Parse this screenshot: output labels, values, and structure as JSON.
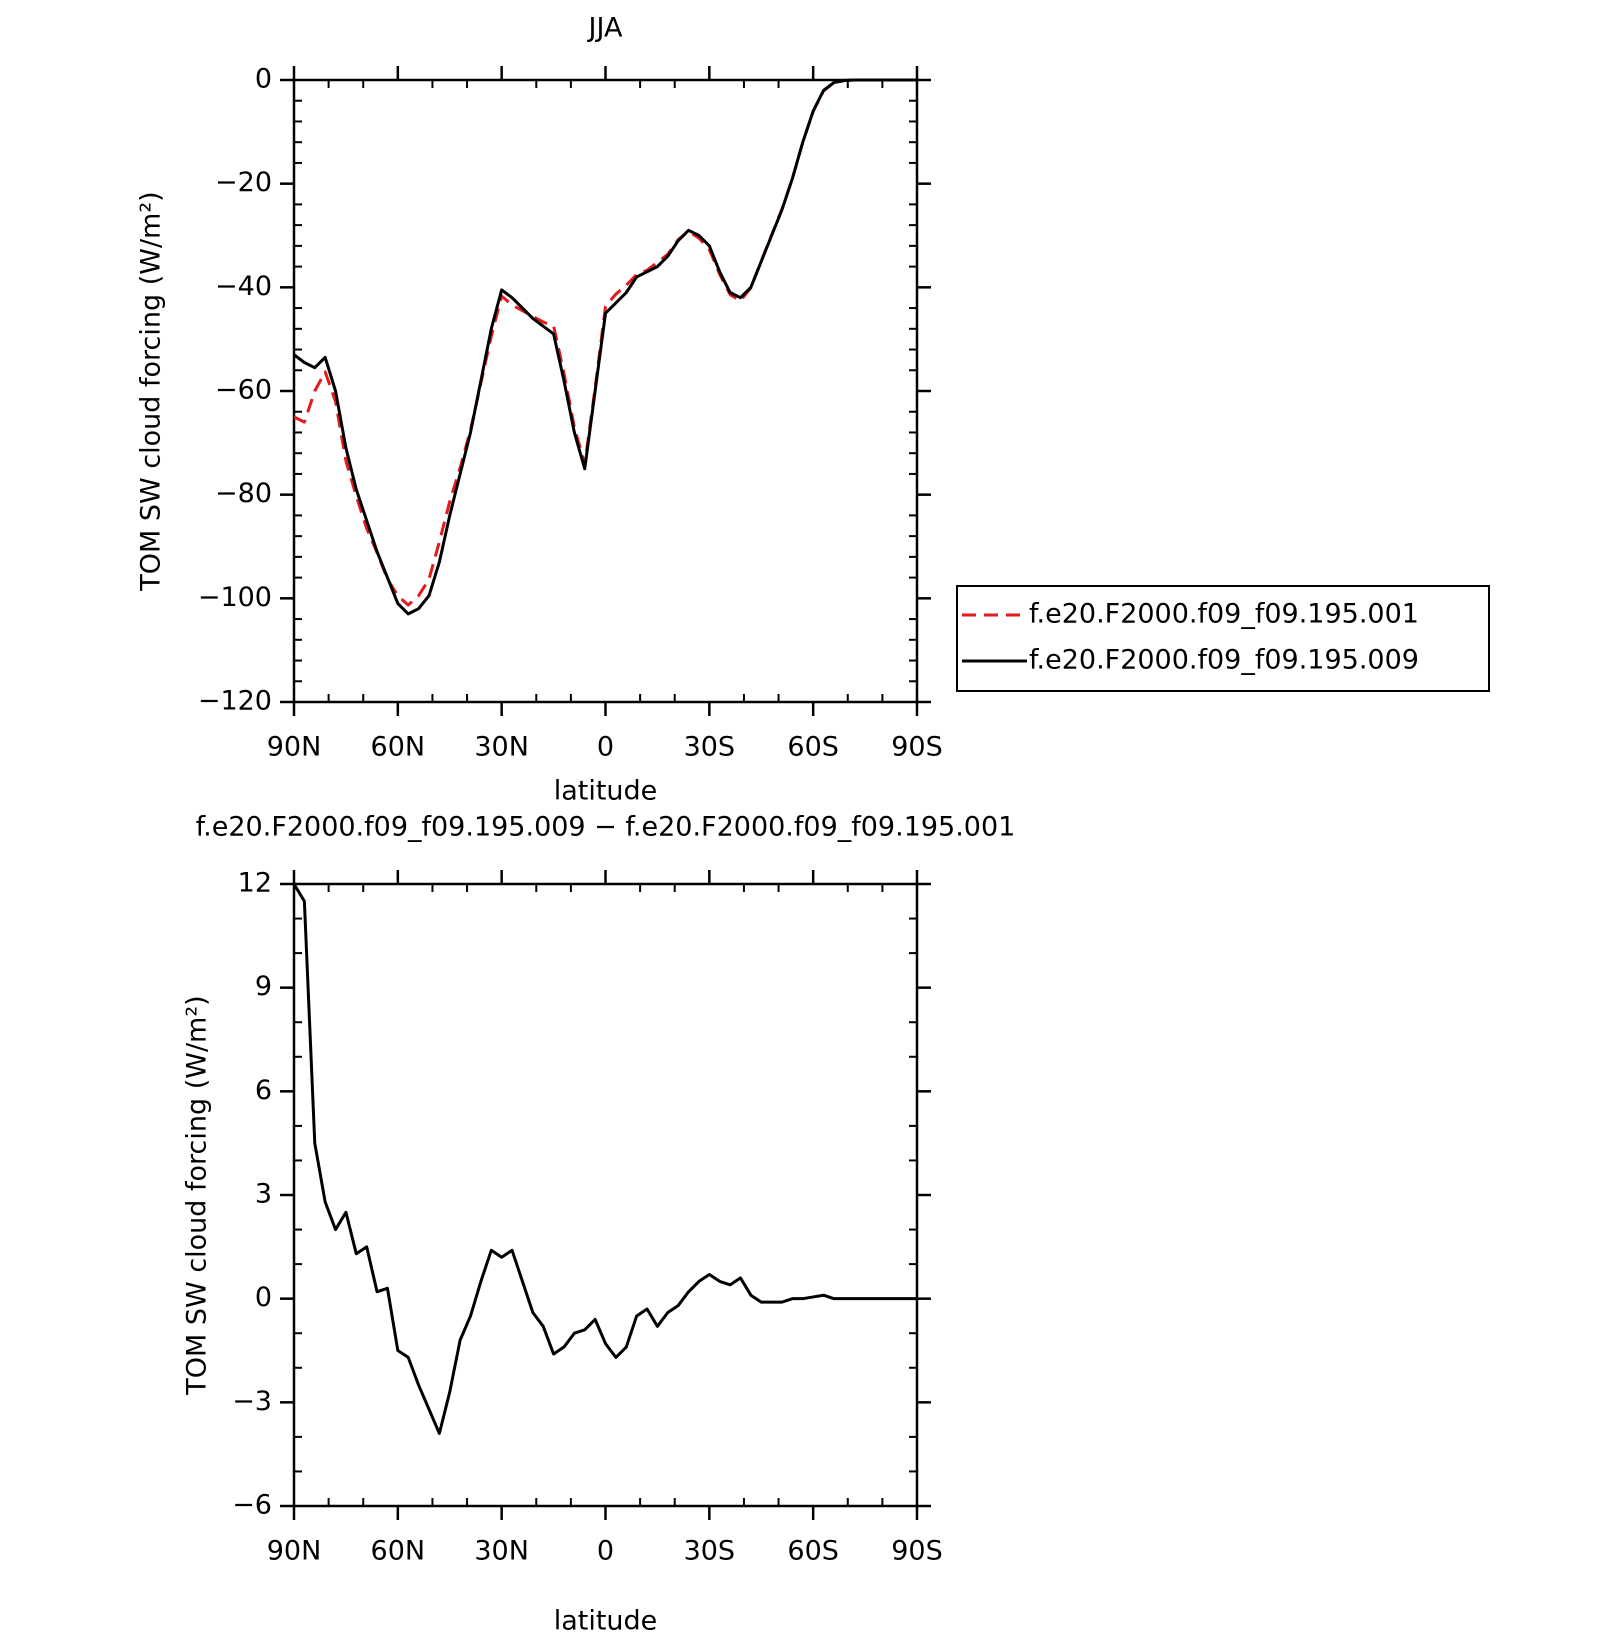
{
  "chart_data": [
    {
      "type": "line",
      "title": "JJA",
      "xlabel": "latitude",
      "ylabel": "TOM SW cloud forcing (W/m²)",
      "x": [
        90,
        87,
        84,
        81,
        78,
        75,
        72,
        69,
        66,
        63,
        60,
        57,
        54,
        51,
        48,
        45,
        42,
        39,
        36,
        33,
        30,
        27,
        24,
        21,
        18,
        15,
        12,
        9,
        6,
        3,
        0,
        -3,
        -6,
        -9,
        -12,
        -15,
        -18,
        -21,
        -24,
        -27,
        -30,
        -33,
        -36,
        -39,
        -42,
        -45,
        -48,
        -51,
        -54,
        -57,
        -60,
        -63,
        -66,
        -69,
        -72,
        -75,
        -78,
        -81,
        -84,
        -87,
        -90
      ],
      "series": [
        {
          "name": "f.e20.F2000.f09_f09.195.001",
          "color": "#e41a1c",
          "linestyle": "dashed",
          "values": [
            -65,
            -66,
            -60,
            -56.3,
            -62,
            -73.5,
            -80.3,
            -86.5,
            -91.2,
            -96.3,
            -99.5,
            -101.3,
            -99.5,
            -96.3,
            -89.1,
            -81.3,
            -74.8,
            -67.5,
            -58.5,
            -49.4,
            -41.7,
            -43.4,
            -44.5,
            -45.6,
            -46.7,
            -47.4,
            -56.6,
            -67,
            -74.1,
            -59.4,
            -43.7,
            -41.3,
            -39.6,
            -37.5,
            -36.7,
            -35.2,
            -33.6,
            -30.8,
            -29.2,
            -30.5,
            -32.7,
            -37.5,
            -41.4,
            -42.6,
            -40.1,
            -34.9,
            -29.9,
            -24.9,
            -19,
            -12,
            -6.05,
            -2.1,
            -0.5,
            -0.1,
            0,
            0,
            0,
            0,
            0,
            0,
            0
          ]
        },
        {
          "name": "f.e20.F2000.f09_f09.195.009",
          "color": "#000000",
          "linestyle": "solid",
          "values": [
            -53,
            -54.5,
            -55.5,
            -53.5,
            -60,
            -71,
            -79,
            -85,
            -91,
            -96,
            -101,
            -103,
            -102,
            -99.5,
            -93,
            -84,
            -76,
            -68,
            -58,
            -48,
            -40.5,
            -42,
            -44,
            -46,
            -47.5,
            -49,
            -58,
            -68,
            -75,
            -60,
            -45,
            -43,
            -41,
            -38,
            -37,
            -36,
            -34,
            -31,
            -29,
            -30,
            -32,
            -37,
            -41,
            -42,
            -40,
            -35,
            -30,
            -25,
            -19,
            -12,
            -6,
            -2,
            -0.5,
            -0.1,
            0,
            0,
            0,
            0,
            0,
            0,
            0
          ]
        }
      ],
      "xlim": [
        90,
        -90
      ],
      "xticks": [
        {
          "value": 90,
          "label": "90N"
        },
        {
          "value": 60,
          "label": "60N"
        },
        {
          "value": 30,
          "label": "30N"
        },
        0,
        {
          "value": -30,
          "label": "30S"
        },
        {
          "value": -60,
          "label": "60S"
        },
        {
          "value": -90,
          "label": "90S"
        }
      ],
      "minor_xticks": [
        80,
        70,
        50,
        40,
        20,
        10,
        -10,
        -20,
        -40,
        -50,
        -70,
        -80
      ],
      "ylim": [
        -120,
        0
      ],
      "yticks": [
        {
          "value": 0,
          "label": "0"
        },
        {
          "value": -20,
          "label": "−20"
        },
        {
          "value": -40,
          "label": "−40"
        },
        {
          "value": -60,
          "label": "−60"
        },
        {
          "value": -80,
          "label": "−80"
        },
        {
          "value": -100,
          "label": "−100"
        },
        {
          "value": -120,
          "label": "−120"
        }
      ],
      "minor_yticks": [
        -4,
        -8,
        -12,
        -16,
        -24,
        -28,
        -32,
        -36,
        -44,
        -48,
        -52,
        -56,
        -64,
        -68,
        -72,
        -76,
        -84,
        -88,
        -92,
        -96,
        -104,
        -108,
        -112,
        -116
      ],
      "legend": "right"
    },
    {
      "type": "line",
      "title": "f.e20.F2000.f09_f09.195.009 − f.e20.F2000.f09_f09.195.001",
      "xlabel": "latitude",
      "ylabel": "TOM SW cloud forcing (W/m²)",
      "x": [
        90,
        87,
        84,
        81,
        78,
        75,
        72,
        69,
        66,
        63,
        60,
        57,
        54,
        51,
        48,
        45,
        42,
        39,
        36,
        33,
        30,
        27,
        24,
        21,
        18,
        15,
        12,
        9,
        6,
        3,
        0,
        -3,
        -6,
        -9,
        -12,
        -15,
        -18,
        -21,
        -24,
        -27,
        -30,
        -33,
        -36,
        -39,
        -42,
        -45,
        -48,
        -51,
        -54,
        -57,
        -60,
        -63,
        -66,
        -69,
        -72,
        -75,
        -78,
        -81,
        -84,
        -87,
        -90
      ],
      "color": "#000000",
      "values": [
        12,
        11.5,
        4.5,
        2.8,
        2,
        2.5,
        1.3,
        1.5,
        0.2,
        0.3,
        -1.5,
        -1.7,
        -2.5,
        -3.2,
        -3.9,
        -2.7,
        -1.2,
        -0.5,
        0.5,
        1.4,
        1.2,
        1.4,
        0.5,
        -0.4,
        -0.8,
        -1.6,
        -1.4,
        -1.0,
        -0.9,
        -0.6,
        -1.3,
        -1.7,
        -1.4,
        -0.5,
        -0.3,
        -0.8,
        -0.4,
        -0.2,
        0.2,
        0.5,
        0.7,
        0.5,
        0.4,
        0.6,
        0.1,
        -0.1,
        -0.1,
        -0.1,
        0,
        0,
        0.05,
        0.1,
        0,
        0,
        0,
        0,
        0,
        0,
        0,
        0,
        0
      ],
      "xlim": [
        90,
        -90
      ],
      "xticks": [
        {
          "value": 90,
          "label": "90N"
        },
        {
          "value": 60,
          "label": "60N"
        },
        {
          "value": 30,
          "label": "30N"
        },
        0,
        {
          "value": -30,
          "label": "30S"
        },
        {
          "value": -60,
          "label": "60S"
        },
        {
          "value": -90,
          "label": "90S"
        }
      ],
      "minor_xticks": [
        80,
        70,
        50,
        40,
        20,
        10,
        -10,
        -20,
        -40,
        -50,
        -70,
        -80
      ],
      "ylim": [
        -6,
        12
      ],
      "yticks": [
        12,
        9,
        6,
        3,
        0,
        {
          "value": -3,
          "label": "−3"
        },
        {
          "value": -6,
          "label": "−6"
        }
      ],
      "minor_yticks": [
        11,
        10,
        8,
        7,
        5,
        4,
        2,
        1,
        -1,
        -2,
        -4,
        -5
      ]
    }
  ]
}
